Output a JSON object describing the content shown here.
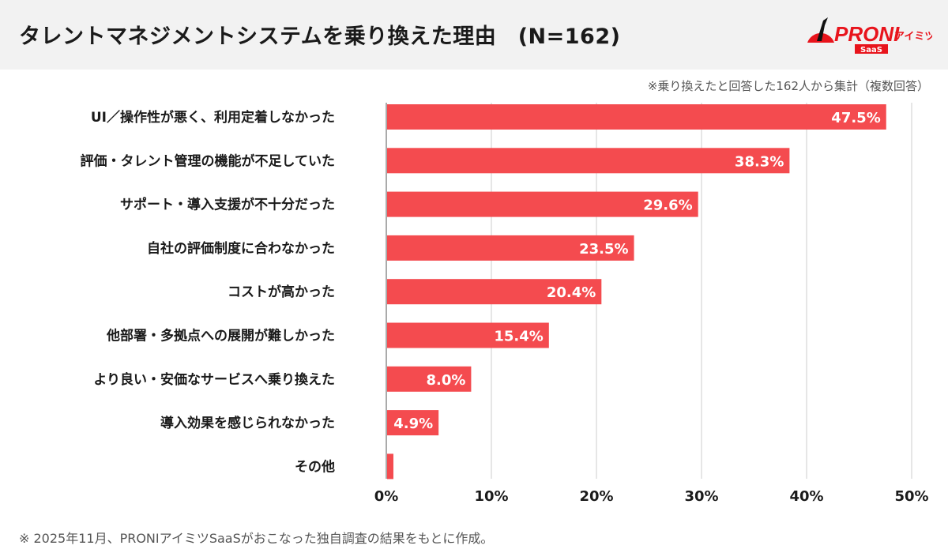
{
  "header": {
    "title": "タレントマネジメントシステムを乗り換えた理由　(N=162)",
    "logo_text": "PRONIアイミツ SaaS"
  },
  "note": "※乗り換えたと回答した162人から集計（複数回答）",
  "footer": "※ 2025年11月、PRONIアイミツSaaSがおこなった独自調査の結果をもとに作成。",
  "colors": {
    "bar": "#f44b4f",
    "header_bg": "#f2f2f2",
    "grid": "#dddddd"
  },
  "chart_data": {
    "type": "bar",
    "orientation": "horizontal",
    "categories": [
      "UI／操作性が悪く、利用定着しなかった",
      "評価・タレント管理の機能が不足していた",
      "サポート・導入支援が不十分だった",
      "自社の評価制度に合わなかった",
      "コストが高かった",
      "他部署・多拠点への展開が難しかった",
      "より良い・安価なサービスへ乗り換えた",
      "導入効果を感じられなかった",
      "その他"
    ],
    "values": [
      47.5,
      38.3,
      29.6,
      23.5,
      20.4,
      15.4,
      8.0,
      4.9,
      0.6
    ],
    "labels": [
      "47.5%",
      "38.3%",
      "29.6%",
      "23.5%",
      "20.4%",
      "15.4%",
      "8.0%",
      "4.9%",
      ""
    ],
    "xlim": [
      0,
      50
    ],
    "xticks": [
      "0%",
      "10%",
      "20%",
      "30%",
      "40%",
      "50%"
    ],
    "grid": true
  }
}
